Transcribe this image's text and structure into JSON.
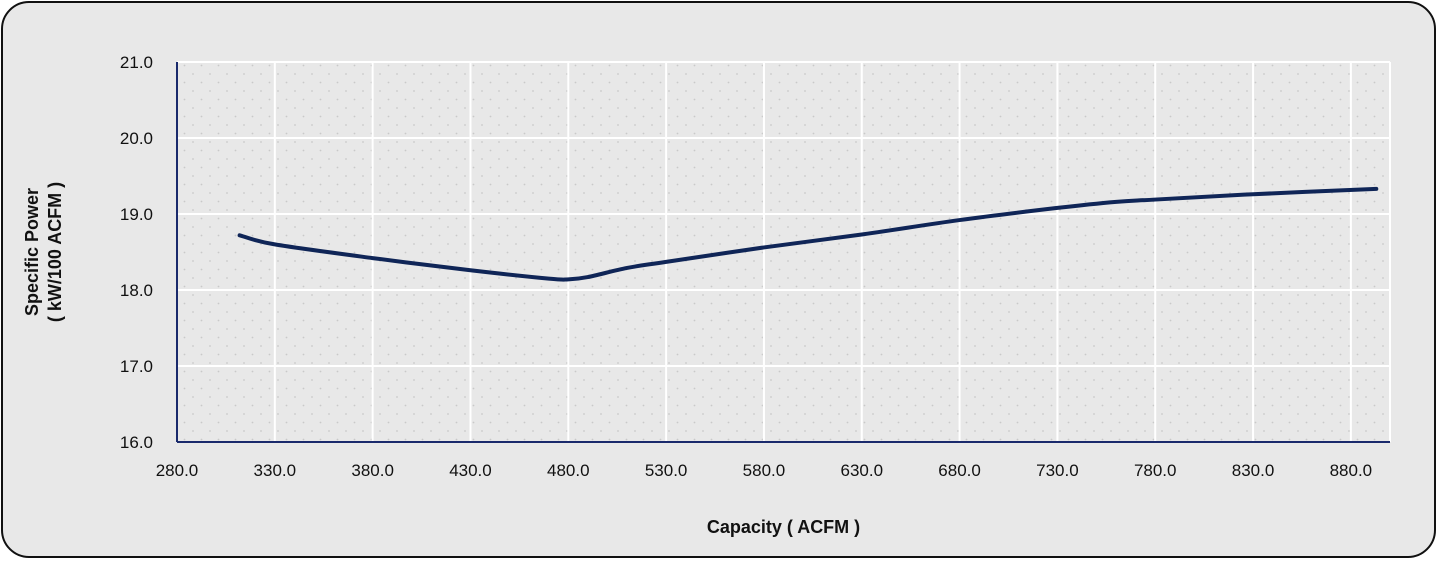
{
  "chart_data": {
    "type": "line",
    "title": "",
    "xlabel": "Capacity  ( ACFM )",
    "ylabel_lines": [
      "Specific  Power",
      "( kW/100 ACFM )"
    ],
    "xlim": [
      280,
      900
    ],
    "ylim": [
      16,
      21
    ],
    "x_ticks": [
      280,
      330,
      380,
      430,
      480,
      530,
      580,
      630,
      680,
      730,
      780,
      830,
      880
    ],
    "x_tick_labels": [
      "280.0",
      "330.0",
      "380.0",
      "430.0",
      "480.0",
      "530.0",
      "580.0",
      "630.0",
      "680.0",
      "730.0",
      "780.0",
      "830.0",
      "880.0"
    ],
    "y_ticks": [
      16,
      17,
      18,
      19,
      20,
      21
    ],
    "y_tick_labels": [
      "16.0",
      "17.0",
      "18.0",
      "19.0",
      "20.0",
      "21.0"
    ],
    "grid": true,
    "series": [
      {
        "color": "#0f2557",
        "x": [
          312,
          330,
          380,
          430,
          470,
          480,
          490,
          510,
          530,
          580,
          630,
          680,
          730,
          760,
          780,
          830,
          893
        ],
        "values": [
          18.72,
          18.6,
          18.42,
          18.26,
          18.15,
          18.14,
          18.17,
          18.29,
          18.37,
          18.56,
          18.73,
          18.92,
          19.08,
          19.16,
          19.19,
          19.26,
          19.33
        ]
      }
    ],
    "colors": {
      "line": "#0f2557",
      "axis": "#1a2a6c",
      "grid": "#ffffff",
      "plot_background": "#e8e8e8"
    }
  }
}
